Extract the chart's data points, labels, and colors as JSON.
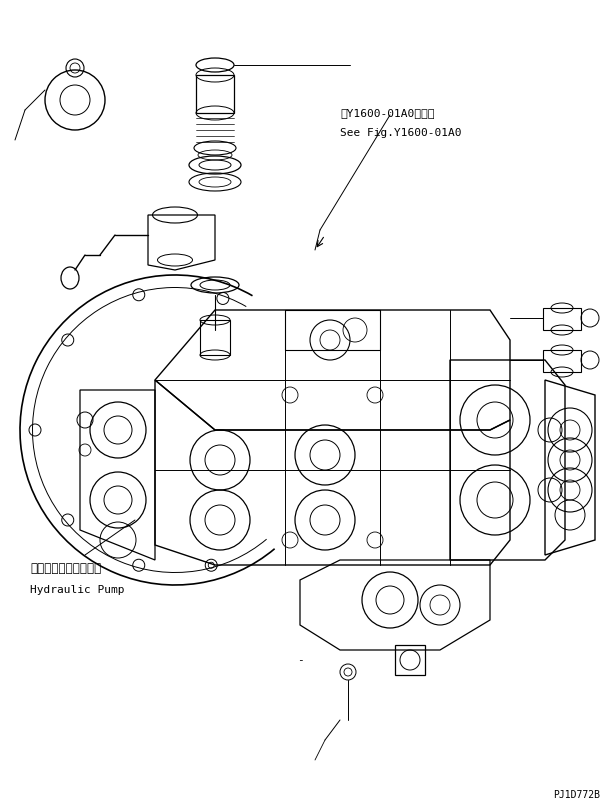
{
  "background_color": "#ffffff",
  "text_color": "#000000",
  "line_color": "#000000",
  "fig_width": 6.1,
  "fig_height": 8.09,
  "dpi": 100,
  "ann_ref_line1": "第Y1600-01A0図参照",
  "ann_ref_line2": "See Fig.Y1600-01A0",
  "ann_pump_jp": "ハイドロリックポンプ",
  "ann_pump_en": "Hydraulic Pump",
  "ann_dash": "-",
  "ann_code": "PJ1D772B"
}
